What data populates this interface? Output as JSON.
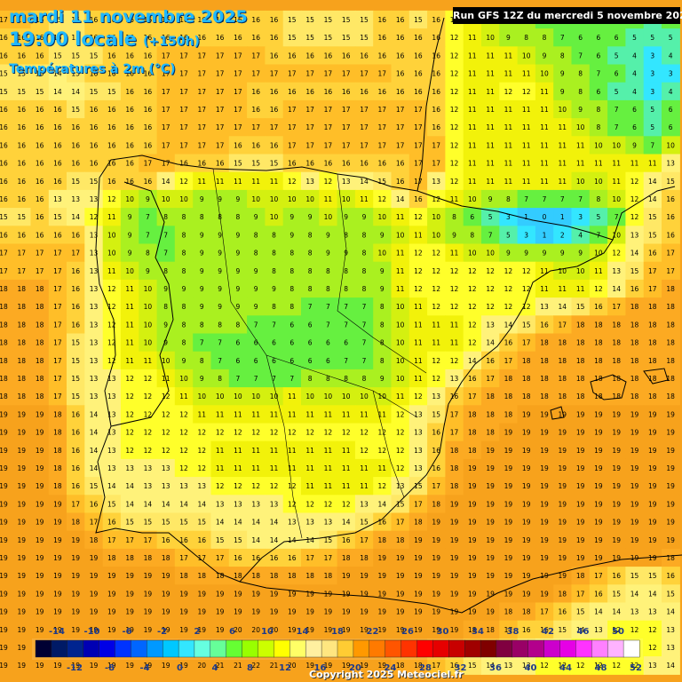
{
  "header": {
    "date": "mardi 11 novembre 2025",
    "time": "19:00 locale",
    "lead": "(+150h)",
    "variable": "Températures à 2m (°C)",
    "run": "Run GFS 12Z du mercredi 5 novembre 2025"
  },
  "footer": {
    "copyright": "Copyright 2025 Meteociel.fr"
  },
  "legend": {
    "top_labels": [
      "-14",
      "-10",
      "-6",
      "-2",
      "2",
      "6",
      "10",
      "14",
      "18",
      "22",
      "26",
      "30",
      "34",
      "38",
      "42",
      "46",
      "50"
    ],
    "bottom_labels": [
      "-12",
      "-8",
      "-4",
      "0",
      "4",
      "8",
      "12",
      "16",
      "20",
      "24",
      "28",
      "32",
      "36",
      "40",
      "44",
      "48",
      "52"
    ],
    "colors": [
      "#000033",
      "#001a66",
      "#00248f",
      "#0000b3",
      "#0000e6",
      "#0033ff",
      "#0066ff",
      "#0099ff",
      "#00c8ff",
      "#33e6ff",
      "#66ffe0",
      "#66ff99",
      "#66ff33",
      "#99ff00",
      "#ccff00",
      "#ffff00",
      "#ffff66",
      "#fff0a0",
      "#ffe680",
      "#ffcc33",
      "#ff9900",
      "#ff7a00",
      "#ff5500",
      "#ff3300",
      "#ff0000",
      "#e60000",
      "#c80000",
      "#a00000",
      "#800000",
      "#800040",
      "#990066",
      "#b3008c",
      "#cc00cc",
      "#e600e6",
      "#ff33ff",
      "#ff80ff",
      "#ffb3ff",
      "#ffffff"
    ]
  },
  "temperature_values": [
    [
      17,
      17,
      16,
      15,
      15,
      16,
      16,
      16,
      16,
      16,
      16,
      16,
      16,
      16,
      16,
      16,
      15,
      15,
      15,
      15,
      15,
      16,
      16,
      15,
      16,
      12,
      11,
      10,
      9,
      8,
      7,
      6,
      6,
      6,
      7,
      6,
      5,
      6
    ],
    [
      16,
      16,
      16,
      15,
      15,
      16,
      16,
      16,
      16,
      16,
      16,
      16,
      16,
      16,
      16,
      16,
      15,
      15,
      15,
      15,
      15,
      16,
      16,
      16,
      16,
      12,
      11,
      10,
      9,
      8,
      8,
      7,
      6,
      6,
      6,
      5,
      5,
      5
    ],
    [
      16,
      16,
      16,
      15,
      15,
      15,
      16,
      16,
      16,
      17,
      17,
      17,
      17,
      17,
      17,
      16,
      16,
      16,
      16,
      16,
      16,
      16,
      16,
      16,
      16,
      12,
      11,
      11,
      11,
      10,
      9,
      8,
      7,
      6,
      5,
      4,
      3,
      4
    ],
    [
      15,
      15,
      15,
      14,
      15,
      16,
      16,
      16,
      16,
      17,
      17,
      17,
      17,
      17,
      17,
      17,
      17,
      17,
      17,
      17,
      17,
      17,
      16,
      16,
      16,
      12,
      11,
      11,
      11,
      11,
      10,
      9,
      8,
      7,
      6,
      4,
      3,
      3
    ],
    [
      15,
      15,
      15,
      14,
      14,
      15,
      15,
      16,
      16,
      17,
      17,
      17,
      17,
      17,
      16,
      16,
      16,
      16,
      16,
      16,
      16,
      16,
      16,
      16,
      16,
      12,
      11,
      11,
      12,
      12,
      11,
      9,
      8,
      6,
      5,
      4,
      3,
      4
    ],
    [
      16,
      16,
      16,
      16,
      15,
      16,
      16,
      16,
      16,
      17,
      17,
      17,
      17,
      17,
      16,
      16,
      17,
      17,
      17,
      17,
      17,
      17,
      17,
      17,
      16,
      12,
      11,
      11,
      11,
      11,
      11,
      10,
      9,
      8,
      7,
      6,
      5,
      6
    ],
    [
      16,
      16,
      16,
      16,
      16,
      16,
      16,
      16,
      16,
      17,
      17,
      17,
      17,
      17,
      17,
      17,
      17,
      17,
      17,
      17,
      17,
      17,
      17,
      17,
      16,
      12,
      11,
      11,
      11,
      11,
      11,
      11,
      10,
      8,
      7,
      6,
      5,
      6
    ],
    [
      16,
      16,
      16,
      16,
      16,
      16,
      16,
      16,
      16,
      17,
      17,
      17,
      17,
      16,
      16,
      16,
      17,
      17,
      17,
      17,
      17,
      17,
      17,
      17,
      17,
      12,
      11,
      11,
      11,
      11,
      11,
      11,
      11,
      10,
      10,
      9,
      7,
      10
    ],
    [
      16,
      16,
      16,
      16,
      16,
      16,
      16,
      16,
      17,
      17,
      16,
      16,
      16,
      15,
      15,
      15,
      16,
      16,
      16,
      16,
      16,
      16,
      16,
      17,
      17,
      12,
      11,
      11,
      11,
      11,
      11,
      11,
      11,
      11,
      11,
      11,
      11,
      13
    ],
    [
      16,
      16,
      16,
      16,
      15,
      15,
      16,
      16,
      16,
      14,
      12,
      11,
      11,
      11,
      11,
      11,
      12,
      13,
      12,
      13,
      14,
      15,
      16,
      17,
      13,
      12,
      11,
      11,
      11,
      11,
      11,
      11,
      10,
      10,
      11,
      12,
      14,
      15
    ],
    [
      16,
      16,
      16,
      13,
      13,
      13,
      12,
      10,
      9,
      10,
      10,
      9,
      9,
      9,
      10,
      10,
      10,
      10,
      11,
      10,
      11,
      12,
      14,
      16,
      12,
      11,
      10,
      9,
      8,
      7,
      7,
      7,
      7,
      8,
      10,
      12,
      14,
      16
    ],
    [
      15,
      15,
      16,
      15,
      14,
      12,
      11,
      9,
      7,
      8,
      8,
      8,
      8,
      8,
      9,
      10,
      9,
      9,
      10,
      9,
      9,
      10,
      11,
      12,
      10,
      8,
      6,
      5,
      3,
      1,
      0,
      1,
      3,
      5,
      7,
      12,
      15,
      16
    ],
    [
      16,
      16,
      16,
      16,
      16,
      13,
      10,
      9,
      7,
      7,
      8,
      9,
      9,
      9,
      8,
      8,
      9,
      8,
      9,
      8,
      8,
      9,
      10,
      11,
      10,
      9,
      8,
      7,
      5,
      3,
      1,
      2,
      4,
      7,
      10,
      13,
      15,
      16
    ],
    [
      17,
      17,
      17,
      17,
      17,
      13,
      10,
      9,
      8,
      7,
      8,
      9,
      9,
      9,
      8,
      8,
      8,
      8,
      9,
      9,
      8,
      10,
      11,
      12,
      12,
      11,
      10,
      10,
      9,
      9,
      9,
      9,
      9,
      10,
      12,
      14,
      16,
      17
    ],
    [
      17,
      17,
      17,
      17,
      16,
      13,
      11,
      10,
      9,
      8,
      8,
      9,
      9,
      9,
      9,
      8,
      8,
      8,
      8,
      8,
      8,
      9,
      11,
      12,
      12,
      12,
      12,
      12,
      12,
      12,
      11,
      10,
      10,
      11,
      13,
      15,
      17,
      17
    ],
    [
      18,
      18,
      18,
      17,
      16,
      13,
      12,
      11,
      10,
      9,
      9,
      9,
      9,
      9,
      9,
      9,
      8,
      8,
      8,
      8,
      8,
      9,
      11,
      12,
      12,
      12,
      12,
      12,
      12,
      12,
      11,
      11,
      11,
      12,
      14,
      16,
      17,
      18
    ],
    [
      18,
      18,
      18,
      17,
      16,
      13,
      12,
      11,
      10,
      8,
      8,
      9,
      9,
      9,
      9,
      8,
      8,
      7,
      7,
      7,
      7,
      8,
      10,
      11,
      12,
      12,
      12,
      12,
      12,
      12,
      13,
      14,
      15,
      16,
      17,
      18,
      18,
      18
    ],
    [
      18,
      18,
      18,
      17,
      16,
      13,
      12,
      11,
      10,
      9,
      8,
      8,
      8,
      8,
      7,
      7,
      6,
      6,
      7,
      7,
      7,
      8,
      10,
      11,
      11,
      11,
      12,
      13,
      14,
      15,
      16,
      17,
      18,
      18,
      18,
      18,
      18,
      18
    ],
    [
      18,
      18,
      18,
      17,
      15,
      13,
      12,
      11,
      10,
      9,
      8,
      7,
      7,
      6,
      6,
      6,
      6,
      6,
      6,
      6,
      7,
      8,
      10,
      11,
      11,
      11,
      12,
      14,
      16,
      17,
      18,
      18,
      18,
      18,
      18,
      18,
      18,
      18
    ],
    [
      18,
      18,
      18,
      17,
      15,
      13,
      12,
      11,
      11,
      10,
      9,
      8,
      7,
      6,
      6,
      6,
      6,
      6,
      6,
      7,
      7,
      8,
      10,
      11,
      12,
      12,
      14,
      16,
      17,
      18,
      18,
      18,
      18,
      18,
      18,
      18,
      18,
      18
    ],
    [
      18,
      18,
      18,
      17,
      15,
      13,
      13,
      12,
      12,
      11,
      10,
      9,
      8,
      7,
      7,
      7,
      7,
      8,
      8,
      8,
      8,
      9,
      10,
      11,
      12,
      13,
      16,
      17,
      18,
      18,
      18,
      18,
      18,
      18,
      18,
      18,
      18,
      18
    ],
    [
      18,
      18,
      18,
      17,
      15,
      13,
      13,
      12,
      12,
      12,
      11,
      10,
      10,
      10,
      10,
      10,
      11,
      10,
      10,
      10,
      10,
      10,
      11,
      12,
      13,
      16,
      17,
      18,
      18,
      18,
      18,
      18,
      18,
      18,
      18,
      18,
      18,
      18
    ],
    [
      19,
      19,
      19,
      18,
      16,
      14,
      13,
      12,
      12,
      12,
      12,
      11,
      11,
      11,
      11,
      11,
      11,
      11,
      11,
      11,
      11,
      11,
      12,
      13,
      15,
      17,
      18,
      18,
      18,
      19,
      19,
      19,
      19,
      19,
      19,
      19,
      19,
      19
    ],
    [
      19,
      19,
      19,
      18,
      16,
      14,
      13,
      12,
      12,
      12,
      12,
      12,
      12,
      12,
      12,
      12,
      12,
      12,
      12,
      12,
      12,
      12,
      12,
      13,
      16,
      17,
      18,
      18,
      19,
      19,
      19,
      19,
      19,
      19,
      19,
      19,
      19,
      19
    ],
    [
      19,
      19,
      19,
      18,
      16,
      14,
      13,
      12,
      12,
      12,
      12,
      12,
      11,
      11,
      11,
      11,
      11,
      11,
      11,
      11,
      12,
      12,
      12,
      13,
      16,
      18,
      18,
      19,
      19,
      19,
      19,
      19,
      19,
      19,
      19,
      19,
      19,
      19
    ],
    [
      19,
      19,
      19,
      18,
      16,
      14,
      13,
      13,
      13,
      13,
      12,
      12,
      11,
      11,
      11,
      11,
      11,
      11,
      11,
      11,
      11,
      11,
      12,
      13,
      16,
      18,
      19,
      19,
      19,
      19,
      19,
      19,
      19,
      19,
      19,
      19,
      19,
      19
    ],
    [
      19,
      19,
      19,
      18,
      16,
      15,
      14,
      14,
      13,
      13,
      13,
      13,
      12,
      12,
      12,
      12,
      12,
      11,
      11,
      11,
      11,
      12,
      13,
      15,
      17,
      18,
      19,
      19,
      19,
      19,
      19,
      19,
      19,
      19,
      19,
      19,
      19,
      19
    ],
    [
      19,
      19,
      19,
      19,
      17,
      16,
      15,
      14,
      14,
      14,
      14,
      14,
      13,
      13,
      13,
      13,
      12,
      12,
      12,
      12,
      13,
      14,
      15,
      17,
      18,
      19,
      19,
      19,
      19,
      19,
      19,
      19,
      19,
      19,
      19,
      19,
      19,
      19
    ],
    [
      19,
      19,
      19,
      19,
      18,
      17,
      16,
      15,
      15,
      15,
      15,
      15,
      14,
      14,
      14,
      14,
      13,
      13,
      13,
      14,
      15,
      16,
      17,
      18,
      19,
      19,
      19,
      19,
      19,
      19,
      19,
      19,
      19,
      19,
      19,
      19,
      19,
      19
    ],
    [
      19,
      19,
      19,
      19,
      19,
      18,
      17,
      17,
      17,
      16,
      16,
      16,
      15,
      15,
      14,
      14,
      14,
      14,
      15,
      16,
      17,
      18,
      18,
      19,
      19,
      19,
      19,
      19,
      19,
      19,
      19,
      19,
      19,
      19,
      19,
      19,
      19,
      19
    ],
    [
      19,
      19,
      19,
      19,
      19,
      19,
      18,
      18,
      18,
      18,
      17,
      17,
      17,
      16,
      16,
      16,
      16,
      17,
      17,
      18,
      18,
      19,
      19,
      19,
      19,
      19,
      19,
      19,
      19,
      19,
      19,
      19,
      19,
      19,
      19,
      19,
      19,
      18
    ],
    [
      19,
      19,
      19,
      19,
      19,
      19,
      19,
      19,
      19,
      19,
      18,
      18,
      18,
      18,
      18,
      18,
      18,
      18,
      18,
      19,
      19,
      19,
      19,
      19,
      19,
      19,
      19,
      19,
      19,
      19,
      19,
      19,
      18,
      17,
      16,
      15,
      15,
      16
    ],
    [
      19,
      19,
      19,
      19,
      19,
      19,
      19,
      19,
      19,
      19,
      19,
      19,
      19,
      19,
      19,
      19,
      19,
      19,
      19,
      19,
      19,
      19,
      19,
      19,
      19,
      19,
      19,
      19,
      19,
      19,
      19,
      18,
      17,
      16,
      15,
      14,
      14,
      15
    ],
    [
      19,
      19,
      19,
      19,
      19,
      19,
      19,
      19,
      19,
      19,
      19,
      19,
      19,
      19,
      19,
      19,
      19,
      19,
      19,
      19,
      19,
      19,
      19,
      19,
      19,
      19,
      19,
      19,
      18,
      18,
      17,
      16,
      15,
      14,
      14,
      13,
      13,
      14
    ],
    [
      19,
      19,
      19,
      19,
      19,
      19,
      19,
      19,
      19,
      19,
      19,
      19,
      19,
      20,
      20,
      20,
      19,
      19,
      19,
      19,
      19,
      19,
      19,
      19,
      19,
      19,
      18,
      18,
      17,
      16,
      16,
      15,
      14,
      13,
      12,
      12,
      12,
      13
    ],
    [
      19,
      19,
      19,
      19,
      19,
      19,
      19,
      19,
      19,
      19,
      19,
      20,
      20,
      21,
      21,
      21,
      20,
      19,
      19,
      19,
      19,
      19,
      19,
      19,
      18,
      18,
      17,
      17,
      16,
      15,
      14,
      13,
      12,
      12,
      12,
      12,
      12,
      13
    ],
    [
      19,
      19,
      19,
      19,
      19,
      19,
      19,
      19,
      19,
      19,
      19,
      20,
      21,
      21,
      22,
      21,
      20,
      19,
      19,
      19,
      19,
      19,
      18,
      18,
      17,
      16,
      15,
      14,
      13,
      13,
      12,
      12,
      12,
      12,
      12,
      12,
      13,
      14
    ]
  ]
}
